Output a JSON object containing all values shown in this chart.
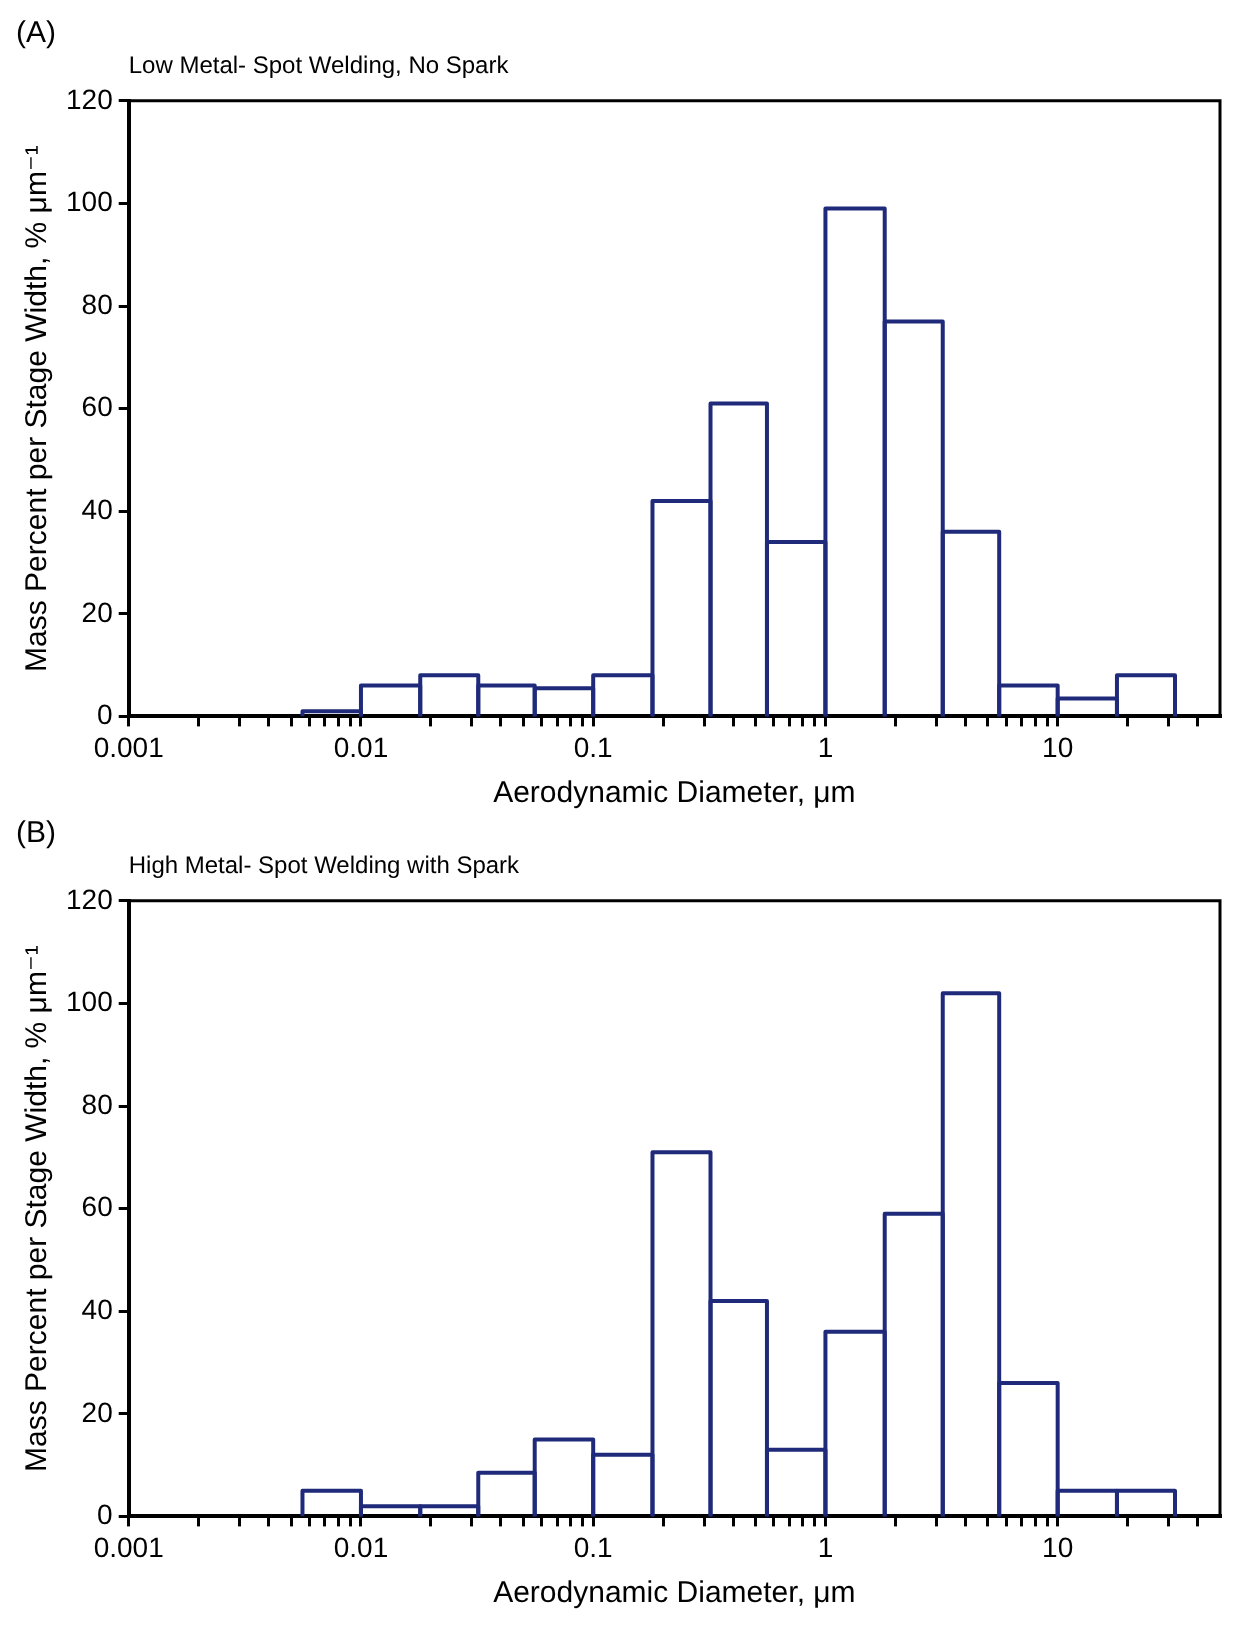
{
  "chart_data": [
    {
      "type": "histogram",
      "title": "(A)",
      "subtitle": "Low Metal- Spot Welding, No Spark",
      "xlabel": "Aerodynamic Diameter, μm",
      "ylabel": "Mass Percent per Stage Width, % μm⁻¹",
      "log": "x",
      "color": "#1f2a7a",
      "bins": [
        0.0056,
        0.01,
        0.018,
        0.032,
        0.056,
        0.1,
        0.18,
        0.32,
        0.56,
        1,
        1.8,
        3.2,
        5.6,
        10,
        18,
        32
      ],
      "values": [
        1,
        6,
        8,
        6,
        5.5,
        8,
        42,
        61,
        34,
        99,
        77,
        36,
        6,
        3.5,
        8
      ],
      "xlim": [
        0.001,
        50
      ],
      "ylim": [
        0,
        120
      ],
      "yticks": [
        0,
        20,
        40,
        60,
        80,
        100,
        120
      ],
      "xticks": [
        0.001,
        {
          "value": 0.002,
          "label": null
        },
        {
          "value": 0.003,
          "label": null
        },
        {
          "value": 0.004,
          "label": null
        },
        {
          "value": 0.005,
          "label": null
        },
        {
          "value": 0.006,
          "label": null
        },
        {
          "value": 0.007,
          "label": null
        },
        {
          "value": 0.008,
          "label": null
        },
        {
          "value": 0.009,
          "label": null
        },
        0.01,
        {
          "value": 0.02,
          "label": null
        },
        {
          "value": 0.03,
          "label": null
        },
        {
          "value": 0.04,
          "label": null
        },
        {
          "value": 0.05,
          "label": null
        },
        {
          "value": 0.06,
          "label": null
        },
        {
          "value": 0.07,
          "label": null
        },
        {
          "value": 0.08,
          "label": null
        },
        {
          "value": 0.09,
          "label": null
        },
        0.1,
        {
          "value": 0.2,
          "label": null
        },
        {
          "value": 0.3,
          "label": null
        },
        {
          "value": 0.4,
          "label": null
        },
        {
          "value": 0.5,
          "label": null
        },
        {
          "value": 0.6,
          "label": null
        },
        {
          "value": 0.7,
          "label": null
        },
        {
          "value": 0.8,
          "label": null
        },
        {
          "value": 0.9,
          "label": null
        },
        1,
        {
          "value": 2,
          "label": null
        },
        {
          "value": 3,
          "label": null
        },
        {
          "value": 4,
          "label": null
        },
        {
          "value": 5,
          "label": null
        },
        {
          "value": 6,
          "label": null
        },
        {
          "value": 7,
          "label": null
        },
        {
          "value": 8,
          "label": null
        },
        {
          "value": 9,
          "label": null
        },
        10,
        {
          "value": 20,
          "label": null
        },
        {
          "value": 30,
          "label": null
        },
        {
          "value": 40,
          "label": null
        }
      ]
    },
    {
      "type": "histogram",
      "title": "(B)",
      "subtitle": "High Metal- Spot Welding with Spark",
      "xlabel": "Aerodynamic Diameter, μm",
      "ylabel": "Mass Percent per Stage Width, % μm⁻¹",
      "log": "x",
      "color": "#1f2a7a",
      "bins": [
        0.0056,
        0.01,
        0.018,
        0.032,
        0.056,
        0.1,
        0.18,
        0.32,
        0.56,
        1,
        1.8,
        3.2,
        5.6,
        10,
        18,
        32
      ],
      "values": [
        5,
        2,
        2,
        8.5,
        15,
        12,
        71,
        42,
        13,
        36,
        59,
        102,
        26,
        5,
        5
      ],
      "xlim": [
        0.001,
        50
      ],
      "ylim": [
        0,
        120
      ],
      "yticks": [
        0,
        20,
        40,
        60,
        80,
        100,
        120
      ],
      "xticks": [
        0.001,
        {
          "value": 0.002,
          "label": null
        },
        {
          "value": 0.003,
          "label": null
        },
        {
          "value": 0.004,
          "label": null
        },
        {
          "value": 0.005,
          "label": null
        },
        {
          "value": 0.006,
          "label": null
        },
        {
          "value": 0.007,
          "label": null
        },
        {
          "value": 0.008,
          "label": null
        },
        {
          "value": 0.009,
          "label": null
        },
        0.01,
        {
          "value": 0.02,
          "label": null
        },
        {
          "value": 0.03,
          "label": null
        },
        {
          "value": 0.04,
          "label": null
        },
        {
          "value": 0.05,
          "label": null
        },
        {
          "value": 0.06,
          "label": null
        },
        {
          "value": 0.07,
          "label": null
        },
        {
          "value": 0.08,
          "label": null
        },
        {
          "value": 0.09,
          "label": null
        },
        0.1,
        {
          "value": 0.2,
          "label": null
        },
        {
          "value": 0.3,
          "label": null
        },
        {
          "value": 0.4,
          "label": null
        },
        {
          "value": 0.5,
          "label": null
        },
        {
          "value": 0.6,
          "label": null
        },
        {
          "value": 0.7,
          "label": null
        },
        {
          "value": 0.8,
          "label": null
        },
        {
          "value": 0.9,
          "label": null
        },
        1,
        {
          "value": 2,
          "label": null
        },
        {
          "value": 3,
          "label": null
        },
        {
          "value": 4,
          "label": null
        },
        {
          "value": 5,
          "label": null
        },
        {
          "value": 6,
          "label": null
        },
        {
          "value": 7,
          "label": null
        },
        {
          "value": 8,
          "label": null
        },
        {
          "value": 9,
          "label": null
        },
        10,
        {
          "value": 20,
          "label": null
        },
        {
          "value": 30,
          "label": null
        },
        {
          "value": 40,
          "label": null
        }
      ]
    }
  ]
}
